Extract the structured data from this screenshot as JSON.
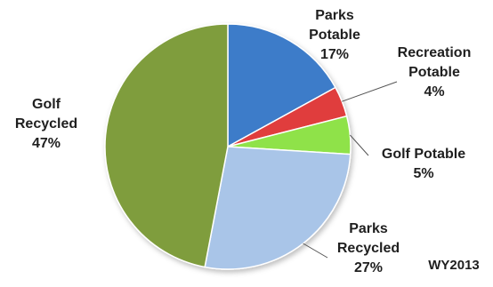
{
  "chart_data": {
    "type": "pie",
    "categories": [
      "Parks Potable",
      "Recreation Potable",
      "Golf Potable",
      "Parks Recycled",
      "Golf Recycled"
    ],
    "values": [
      17,
      4,
      5,
      27,
      47
    ],
    "value_labels": [
      "17%",
      "4%",
      "5%",
      "27%",
      "47%"
    ],
    "label_lines": [
      [
        "Parks",
        "Potable"
      ],
      [
        "Recreation",
        "Potable"
      ],
      [
        "Golf Potable"
      ],
      [
        "Parks",
        "Recycled"
      ],
      [
        "Golf",
        "Recycled"
      ]
    ],
    "colors": [
      "#3d7cc9",
      "#e03c3c",
      "#8fe24a",
      "#a9c5e8",
      "#7f9d3c"
    ],
    "start_angle_deg": 0,
    "direction": "clockwise",
    "annotation": "WY2013"
  }
}
